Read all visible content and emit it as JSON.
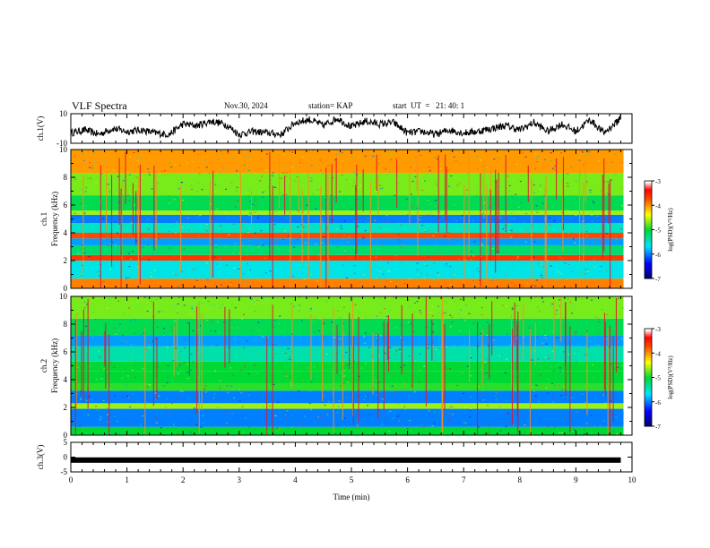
{
  "header": {
    "title": "VLF Spectra",
    "date": "Nov.30, 2024",
    "station": "station= KAP",
    "start_ut": "start  UT  =   21: 40: 1"
  },
  "chart_data": [
    {
      "type": "line",
      "panel": "ch1-waveform",
      "ylabel": "ch.1(V)",
      "yticks": [
        "10",
        "-10"
      ],
      "ylim": [
        -10,
        10
      ],
      "xlim": [
        0,
        10
      ],
      "grid": false,
      "series": [
        {
          "x": [
            0,
            0.25,
            0.5,
            0.75,
            1,
            1.25,
            1.5,
            1.75,
            2,
            2.25,
            2.5,
            2.75,
            3,
            3.25,
            3.5,
            3.75,
            4,
            4.25,
            4.5,
            4.75,
            5,
            5.25,
            5.5,
            5.75,
            6,
            6.25,
            6.5,
            6.75,
            7,
            7.25,
            7.5,
            7.75,
            8,
            8.25,
            8.5,
            8.75,
            9,
            9.25,
            9.5,
            9.75,
            9.8
          ],
          "values": [
            -3,
            -1,
            -4,
            0,
            -2,
            -1,
            -3,
            -4,
            3,
            2,
            5,
            3,
            -4,
            -2,
            -3,
            -4,
            4,
            6,
            2,
            7,
            1,
            5,
            3,
            4,
            -3,
            -2,
            -4,
            -1,
            -3,
            -2,
            0,
            2,
            -1,
            4,
            -2,
            3,
            -2,
            6,
            -3,
            5,
            8
          ],
          "color": "#000000"
        }
      ]
    },
    {
      "type": "heatmap",
      "panel": "ch1-spectrogram",
      "ylabel": "ch.1\nFrequency (kHz)",
      "yticks": [
        "0",
        "2",
        "4",
        "6",
        "8",
        "10"
      ],
      "ylim": [
        0,
        10
      ],
      "xlim": [
        0,
        10
      ],
      "colorbar": {
        "label": "log(PSD)(V²/Hz)",
        "ticks": [
          "-3",
          "-4",
          "-5",
          "-6",
          "-7"
        ],
        "range": [
          -7,
          -3
        ]
      },
      "band_levels_khz": [
        {
          "from": 0,
          "to": 0.7,
          "level": -3.9
        },
        {
          "from": 0.7,
          "to": 2.0,
          "level": -5.6
        },
        {
          "from": 2.0,
          "to": 2.4,
          "level": -3.6
        },
        {
          "from": 2.4,
          "to": 3.1,
          "level": -5.2
        },
        {
          "from": 3.1,
          "to": 3.6,
          "level": -5.9
        },
        {
          "from": 3.6,
          "to": 4.0,
          "level": -3.7
        },
        {
          "from": 4.0,
          "to": 4.7,
          "level": -5.5
        },
        {
          "from": 4.7,
          "to": 5.3,
          "level": -6.0
        },
        {
          "from": 5.3,
          "to": 5.6,
          "level": -4.6
        },
        {
          "from": 5.6,
          "to": 6.7,
          "level": -5.1
        },
        {
          "from": 6.7,
          "to": 8.3,
          "level": -4.7
        },
        {
          "from": 8.3,
          "to": 10,
          "level": -4.0
        }
      ]
    },
    {
      "type": "heatmap",
      "panel": "ch2-spectrogram",
      "ylabel": "ch.2\nFrequency (kHz)",
      "yticks": [
        "0",
        "2",
        "4",
        "6",
        "8",
        "10"
      ],
      "ylim": [
        0,
        10
      ],
      "xlim": [
        0,
        10
      ],
      "colorbar": {
        "label": "log(PSD)(V²/Hz)",
        "ticks": [
          "-3",
          "-4",
          "-5",
          "-6",
          "-7"
        ],
        "range": [
          -7,
          -3
        ]
      },
      "band_levels_khz": [
        {
          "from": 0,
          "to": 0.6,
          "level": -5.0
        },
        {
          "from": 0.6,
          "to": 1.9,
          "level": -6.0
        },
        {
          "from": 1.9,
          "to": 2.3,
          "level": -4.6
        },
        {
          "from": 2.3,
          "to": 3.2,
          "level": -6.0
        },
        {
          "from": 3.2,
          "to": 3.7,
          "level": -4.9
        },
        {
          "from": 3.7,
          "to": 4.6,
          "level": -5.0
        },
        {
          "from": 4.6,
          "to": 5.3,
          "level": -5.0
        },
        {
          "from": 5.3,
          "to": 6.4,
          "level": -5.4
        },
        {
          "from": 6.4,
          "to": 7.2,
          "level": -5.9
        },
        {
          "from": 7.2,
          "to": 8.4,
          "level": -5.1
        },
        {
          "from": 8.4,
          "to": 10,
          "level": -4.7
        }
      ]
    },
    {
      "type": "line",
      "panel": "ch3-waveform",
      "ylabel": "ch.3(V)",
      "yticks": [
        "5",
        "0",
        "-5"
      ],
      "ylim": [
        -5,
        5
      ],
      "xlim": [
        0,
        10
      ],
      "xlabel": "Time (min)",
      "xticks": [
        "0",
        "1",
        "2",
        "3",
        "4",
        "5",
        "6",
        "7",
        "8",
        "9",
        "10"
      ],
      "series": [
        {
          "x": [
            0,
            9.8
          ],
          "values": [
            -1,
            -1
          ],
          "color": "#000000"
        }
      ]
    }
  ]
}
